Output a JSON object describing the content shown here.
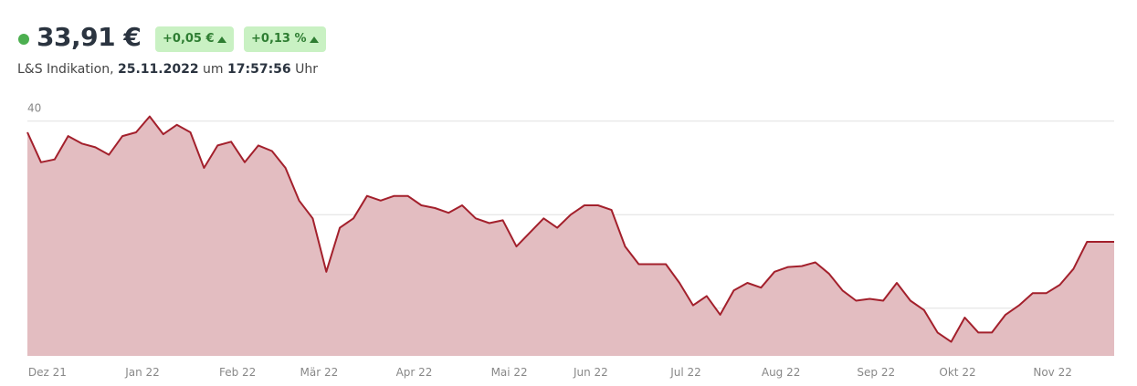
{
  "header": {
    "price": "33,91 €",
    "change_abs": "+0,05 €",
    "change_pct": "+0,13 %",
    "source": "L&S Indikation,",
    "date": "25.11.2022",
    "at": "um",
    "time": "17:57:56",
    "suffix": "Uhr"
  },
  "chart_data": {
    "type": "area",
    "categories": [
      null,
      "Dez 21",
      null,
      null,
      null,
      null,
      null,
      null,
      "Jan 22",
      null,
      null,
      null,
      null,
      null,
      null,
      "Feb 22",
      null,
      null,
      null,
      null,
      null,
      "Mär 22",
      null,
      null,
      null,
      null,
      null,
      null,
      "Apr 22",
      null,
      null,
      null,
      null,
      null,
      null,
      "Mai 22",
      null,
      null,
      null,
      null,
      null,
      "Jun 22",
      null,
      null,
      null,
      null,
      null,
      null,
      "Jul 22",
      null,
      null,
      null,
      null,
      null,
      null,
      "Aug 22",
      null,
      null,
      null,
      null,
      null,
      null,
      "Sep 22",
      null,
      null,
      null,
      null,
      null,
      "Okt 22",
      null,
      null,
      null,
      null,
      null,
      null,
      "Nov 22",
      null,
      null,
      null,
      null,
      null
    ],
    "values": [
      39.4,
      37.8,
      37.95,
      39.2,
      38.8,
      38.6,
      38.2,
      39.2,
      39.4,
      40.25,
      39.3,
      39.8,
      39.4,
      37.5,
      38.7,
      38.9,
      37.8,
      38.7,
      38.4,
      37.5,
      35.75,
      34.8,
      31.95,
      34.3,
      34.8,
      36.0,
      35.75,
      36.0,
      36.0,
      35.5,
      35.35,
      35.1,
      35.5,
      34.8,
      34.55,
      34.7,
      33.3,
      34.05,
      34.8,
      34.3,
      35.0,
      35.5,
      35.5,
      35.25,
      33.3,
      32.35,
      32.35,
      32.35,
      31.35,
      30.15,
      30.65,
      29.65,
      30.95,
      31.35,
      31.1,
      31.95,
      32.2,
      32.25,
      32.45,
      31.85,
      30.95,
      30.4,
      30.5,
      30.4,
      31.35,
      30.4,
      29.9,
      28.7,
      28.2,
      29.5,
      28.7,
      28.7,
      29.65,
      30.15,
      30.8,
      30.8,
      31.25,
      32.1,
      33.55,
      33.55,
      33.55
    ],
    "color": "#a3202c",
    "fill_color": "#e3bdc1",
    "ylim": [
      27.45,
      42
    ],
    "yticks": [
      30,
      35,
      40
    ],
    "grid": true
  }
}
